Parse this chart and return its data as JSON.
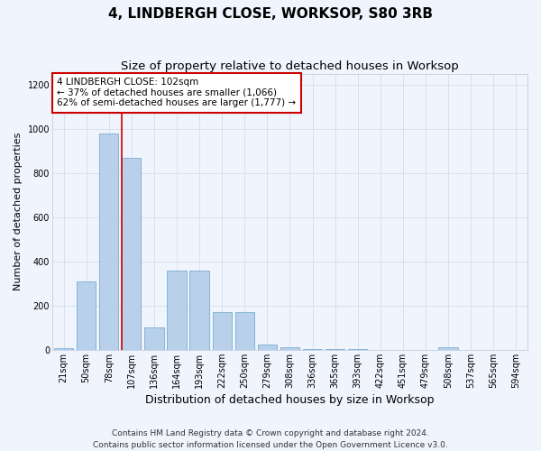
{
  "title": "4, LINDBERGH CLOSE, WORKSOP, S80 3RB",
  "subtitle": "Size of property relative to detached houses in Worksop",
  "xlabel": "Distribution of detached houses by size in Worksop",
  "ylabel": "Number of detached properties",
  "categories": [
    "21sqm",
    "50sqm",
    "78sqm",
    "107sqm",
    "136sqm",
    "164sqm",
    "193sqm",
    "222sqm",
    "250sqm",
    "279sqm",
    "308sqm",
    "336sqm",
    "365sqm",
    "393sqm",
    "422sqm",
    "451sqm",
    "479sqm",
    "508sqm",
    "537sqm",
    "565sqm",
    "594sqm"
  ],
  "values": [
    8,
    310,
    980,
    870,
    100,
    360,
    360,
    170,
    170,
    25,
    10,
    3,
    2,
    2,
    1,
    1,
    1,
    12,
    1,
    0,
    0
  ],
  "bar_color": "#b8d0ea",
  "bar_edge_color": "#7aadd0",
  "grid_color": "#d8e0ee",
  "background_color": "#f0f4fc",
  "annotation_text": "4 LINDBERGH CLOSE: 102sqm\n← 37% of detached houses are smaller (1,066)\n62% of semi-detached houses are larger (1,777) →",
  "annotation_box_color": "#ffffff",
  "annotation_box_edge": "#cc0000",
  "vline_color": "#cc0000",
  "vline_bin": 3,
  "ylim": [
    0,
    1250
  ],
  "yticks": [
    0,
    200,
    400,
    600,
    800,
    1000,
    1200
  ],
  "footer": "Contains HM Land Registry data © Crown copyright and database right 2024.\nContains public sector information licensed under the Open Government Licence v3.0.",
  "title_fontsize": 11,
  "subtitle_fontsize": 9.5,
  "xlabel_fontsize": 9,
  "ylabel_fontsize": 8,
  "tick_fontsize": 7,
  "annotation_fontsize": 7.5,
  "footer_fontsize": 6.5
}
